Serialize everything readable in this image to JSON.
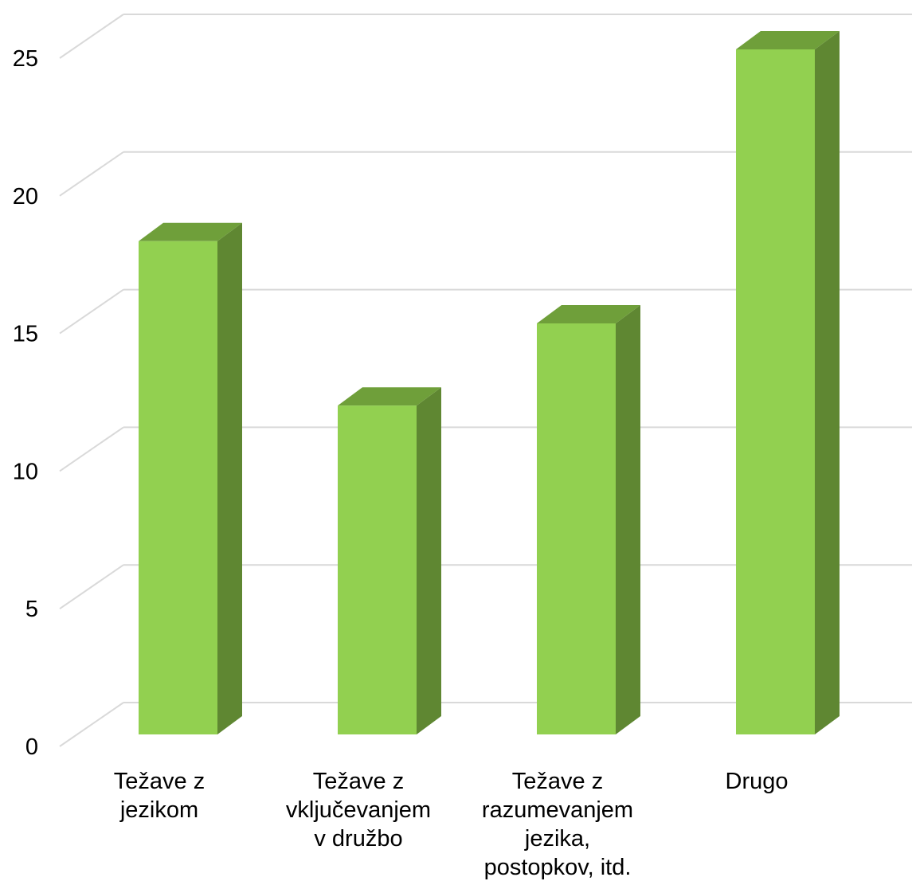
{
  "chart_data": {
    "type": "bar",
    "style": "3d-column",
    "categories": [
      [
        "Težave z",
        "jezikom"
      ],
      [
        "Težave z",
        "vključevanjem",
        "v družbo"
      ],
      [
        "Težave z",
        "razumevanjem",
        "jezika,",
        "postopkov, itd."
      ],
      [
        "Drugo"
      ]
    ],
    "values": [
      18,
      12,
      15,
      25
    ],
    "ylim": [
      0,
      25
    ],
    "yticks": [
      0,
      5,
      10,
      15,
      20,
      25
    ],
    "grid": true,
    "legend": "none",
    "title": "",
    "xlabel": "",
    "ylabel": "",
    "colors": {
      "bar_front": "#92d050",
      "bar_top": "#6f9f3a",
      "bar_side": "#5f8732",
      "grid": "#d9d9d9"
    }
  }
}
